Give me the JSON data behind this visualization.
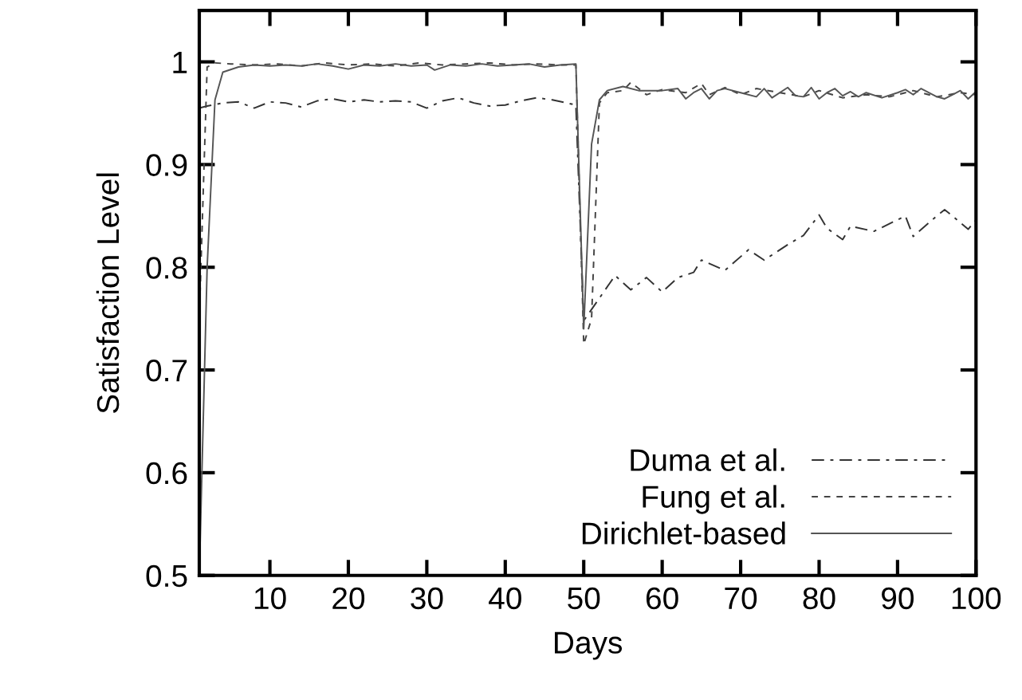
{
  "chart_data": {
    "type": "line",
    "xlabel": "Days",
    "ylabel": "Satisfaction Level",
    "xlim": [
      1,
      100
    ],
    "ylim": [
      0.5,
      1.05
    ],
    "xticks": [
      10,
      20,
      30,
      40,
      50,
      60,
      70,
      80,
      90,
      100
    ],
    "yticks": [
      0.5,
      0.6,
      0.7,
      0.8,
      0.9,
      {
        "value": 1,
        "label": "1"
      }
    ],
    "grid": false,
    "legend": "bottom right",
    "marker": "none",
    "series": [
      {
        "name": "Duma et al.",
        "color": "#333333",
        "line_style": "dashdot",
        "x": [
          1,
          2,
          4,
          6,
          8,
          10,
          12,
          14,
          16,
          18,
          20,
          22,
          24,
          26,
          28,
          30,
          32,
          34,
          36,
          38,
          40,
          42,
          44,
          46,
          49,
          50,
          52,
          54,
          56,
          58,
          60,
          62,
          64,
          65,
          68,
          71,
          73,
          76,
          78,
          80,
          81,
          83,
          84,
          87,
          91,
          92,
          95,
          96,
          97,
          99,
          100
        ],
        "values": [
          0.955,
          0.957,
          0.96,
          0.961,
          0.955,
          0.961,
          0.96,
          0.956,
          0.962,
          0.964,
          0.961,
          0.963,
          0.961,
          0.962,
          0.961,
          0.955,
          0.962,
          0.965,
          0.96,
          0.957,
          0.958,
          0.962,
          0.965,
          0.963,
          0.958,
          0.748,
          0.77,
          0.792,
          0.778,
          0.79,
          0.776,
          0.79,
          0.795,
          0.807,
          0.797,
          0.817,
          0.807,
          0.822,
          0.831,
          0.851,
          0.838,
          0.827,
          0.84,
          0.835,
          0.85,
          0.83,
          0.85,
          0.856,
          0.85,
          0.837,
          0.846
        ]
      },
      {
        "name": "Fung et al.",
        "color": "#444444",
        "line_style": "dashed",
        "x": [
          1,
          2,
          3,
          5,
          8,
          11,
          14,
          17,
          20,
          23,
          26,
          29,
          32,
          35,
          38,
          41,
          44,
          47,
          49,
          50,
          51,
          52,
          53,
          55,
          56,
          58,
          60,
          63,
          65,
          66,
          68,
          70,
          72,
          75,
          78,
          80,
          83,
          86,
          89,
          92,
          95,
          98,
          100
        ],
        "values": [
          0.75,
          0.995,
          0.999,
          0.998,
          0.997,
          0.998,
          0.996,
          0.999,
          0.997,
          0.998,
          0.996,
          0.999,
          0.997,
          0.998,
          0.999,
          0.997,
          0.998,
          0.997,
          0.997,
          0.725,
          0.75,
          0.96,
          0.97,
          0.972,
          0.98,
          0.968,
          0.973,
          0.97,
          0.979,
          0.968,
          0.975,
          0.968,
          0.974,
          0.97,
          0.966,
          0.972,
          0.965,
          0.968,
          0.966,
          0.972,
          0.966,
          0.97,
          0.968
        ]
      },
      {
        "name": "Dirichlet-based",
        "color": "#555555",
        "line_style": "solid",
        "x": [
          1,
          2,
          3,
          4,
          6,
          8,
          10,
          12,
          14,
          16,
          18,
          20,
          22,
          24,
          26,
          28,
          30,
          31,
          33,
          35,
          37,
          39,
          41,
          43,
          45,
          47,
          49,
          50,
          51,
          52,
          53,
          55,
          57,
          60,
          62,
          63,
          64,
          65,
          66,
          67,
          68,
          70,
          72,
          73,
          74,
          76,
          77,
          78,
          79,
          80,
          81,
          82,
          83,
          84,
          85,
          86,
          88,
          90,
          91,
          92,
          93,
          95,
          96,
          97,
          98,
          99,
          100
        ],
        "values": [
          0.5,
          0.8,
          0.963,
          0.99,
          0.995,
          0.997,
          0.996,
          0.997,
          0.996,
          0.998,
          0.996,
          0.993,
          0.997,
          0.996,
          0.998,
          0.996,
          0.997,
          0.992,
          0.997,
          0.996,
          0.998,
          0.996,
          0.997,
          0.998,
          0.995,
          0.997,
          0.998,
          0.74,
          0.92,
          0.963,
          0.972,
          0.976,
          0.972,
          0.972,
          0.974,
          0.964,
          0.97,
          0.974,
          0.964,
          0.972,
          0.974,
          0.97,
          0.966,
          0.974,
          0.965,
          0.975,
          0.967,
          0.966,
          0.975,
          0.964,
          0.97,
          0.974,
          0.967,
          0.971,
          0.966,
          0.97,
          0.965,
          0.97,
          0.973,
          0.968,
          0.974,
          0.966,
          0.964,
          0.968,
          0.972,
          0.964,
          0.971
        ]
      }
    ]
  }
}
